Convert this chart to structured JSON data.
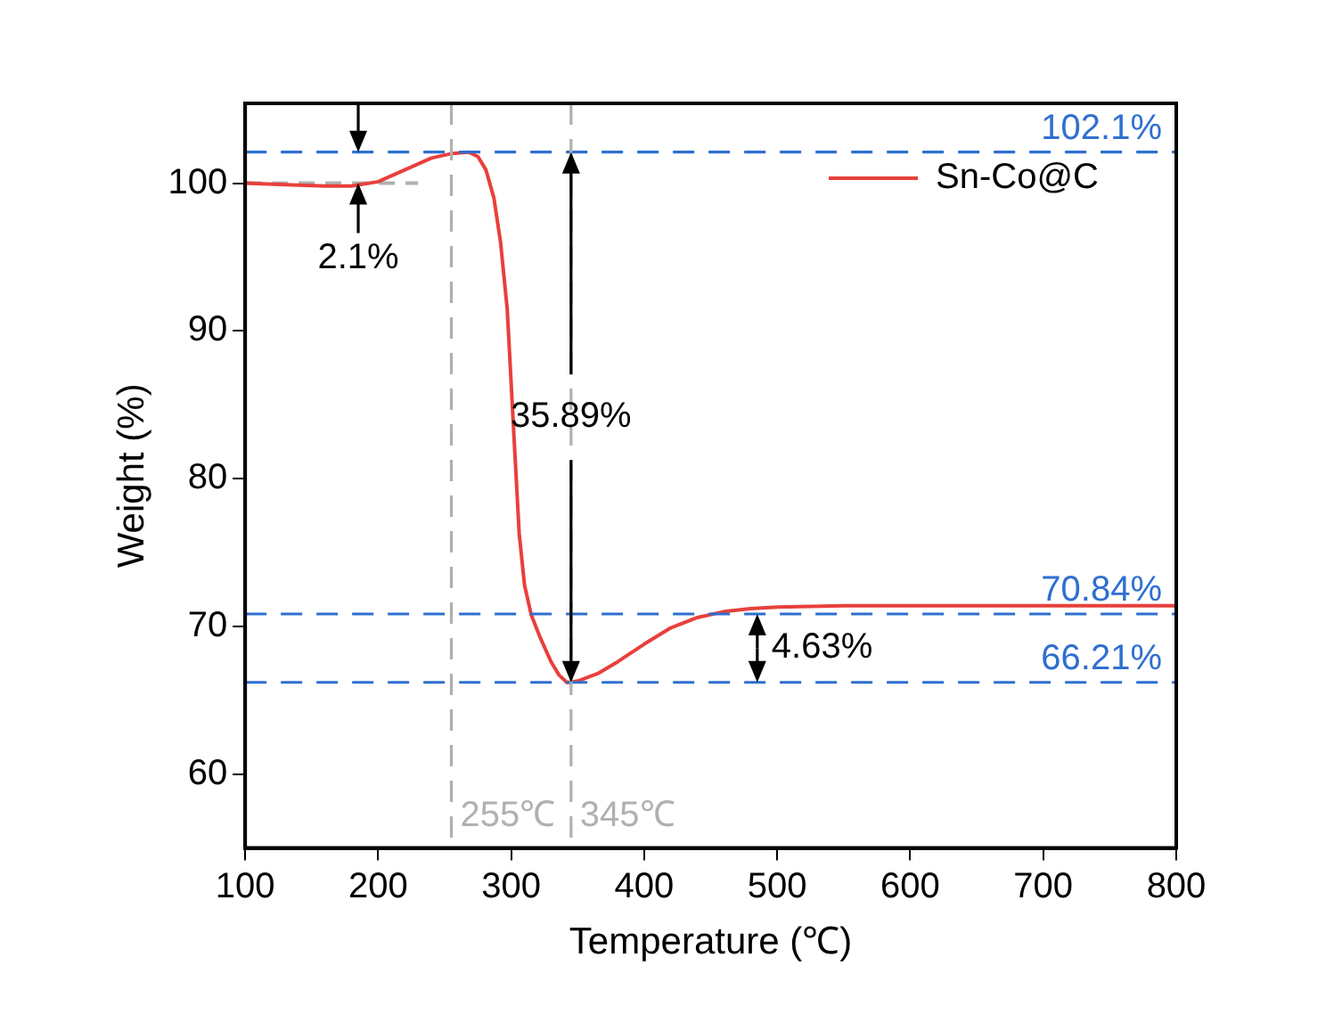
{
  "chart_data": {
    "type": "line",
    "xlabel": "Temperature (℃)",
    "ylabel": "Weight (%)",
    "xlim": [
      100,
      800
    ],
    "xticks": [
      100,
      200,
      300,
      400,
      500,
      600,
      700,
      800
    ],
    "ylim": [
      55,
      105.4
    ],
    "yticks": [
      60,
      70,
      80,
      90,
      100
    ],
    "grid": false,
    "legend": "top right",
    "marker": "none",
    "series": [
      {
        "name": "Sn-Co@C",
        "type": "line",
        "color": "#e8403c",
        "line_style": "solid",
        "x": [
          100,
          130,
          160,
          180,
          200,
          220,
          240,
          255,
          268,
          275,
          281,
          287,
          292,
          297,
          302,
          306,
          310,
          315,
          322,
          330,
          336,
          342,
          350,
          365,
          380,
          400,
          420,
          440,
          460,
          480,
          500,
          550,
          600,
          700,
          800
        ],
        "values": [
          100,
          99.9,
          99.8,
          99.8,
          100.1,
          100.9,
          101.7,
          102.0,
          102.1,
          101.8,
          100.9,
          99,
          96,
          91.5,
          83,
          76.3,
          72.8,
          70.8,
          69.2,
          67.6,
          66.7,
          66.2,
          66.3,
          66.8,
          67.6,
          68.8,
          69.9,
          70.6,
          71.0,
          71.2,
          71.3,
          71.4,
          71.4,
          71.4,
          71.4
        ]
      },
      {
        "type": "line",
        "color": "#b0b0b0",
        "line_style": "dashed",
        "x": [
          100,
          230
        ],
        "values": [
          100,
          100
        ]
      }
    ],
    "ref_lines": [
      {
        "axis": "y",
        "value": 102.1,
        "label": "102.1%",
        "color": "#2f6fd0",
        "line_style": "dashed"
      },
      {
        "axis": "y",
        "value": 70.84,
        "label": "70.84%",
        "color": "#2f6fd0",
        "line_style": "dashed"
      },
      {
        "axis": "y",
        "value": 66.21,
        "label": "66.21%",
        "color": "#2f6fd0",
        "line_style": "dashed"
      },
      {
        "axis": "x",
        "value": 255,
        "label": "255℃",
        "color": "#b0b0b0",
        "line_style": "dashed"
      },
      {
        "axis": "x",
        "value": 345,
        "label": "345℃",
        "color": "#b0b0b0",
        "line_style": "dashed"
      }
    ],
    "annotations": [
      {
        "text": "2.1%",
        "x": 185,
        "y": 100
      },
      {
        "text": "35.89%",
        "x": 345,
        "y": 66.21
      },
      "4.63%"
    ]
  }
}
